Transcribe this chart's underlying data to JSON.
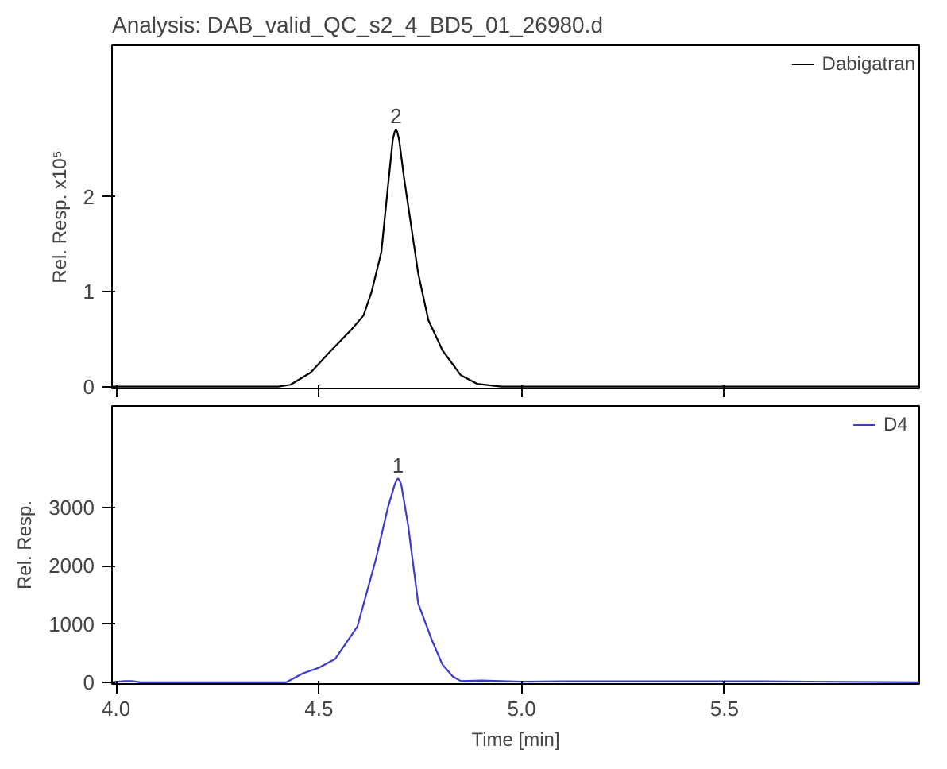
{
  "chart_data": [
    {
      "type": "line",
      "title": "Analysis:     DAB_valid_QC_s2_4_BD5_01_26980.d",
      "ylabel": "Rel. Resp. x10⁵",
      "xlim": [
        3.99,
        5.98
      ],
      "ylim": [
        -0.02,
        3.6
      ],
      "yticks": [
        0,
        1,
        2
      ],
      "tick_labels": "y",
      "grid": false,
      "legend": "top right",
      "series": [
        {
          "name": "Dabigatran",
          "color": "#000000",
          "x": [
            3.99,
            4.2,
            4.4,
            4.43,
            4.48,
            4.53,
            4.58,
            4.61,
            4.63,
            4.654,
            4.67,
            4.682,
            4.687,
            4.69,
            4.693,
            4.698,
            4.71,
            4.745,
            4.77,
            4.805,
            4.85,
            4.89,
            4.95,
            5.2,
            5.98
          ],
          "values": [
            0,
            0,
            0,
            0.02,
            0.15,
            0.38,
            0.6,
            0.75,
            1.0,
            1.42,
            2.1,
            2.6,
            2.69,
            2.71,
            2.69,
            2.6,
            2.2,
            1.19,
            0.7,
            0.38,
            0.12,
            0.03,
            0,
            0,
            0
          ]
        }
      ],
      "annotations": [
        {
          "text": "2",
          "x": 4.69,
          "y": 2.71
        }
      ]
    },
    {
      "type": "line",
      "ylabel": "Rel. Resp.",
      "xlabel": "Time [min]",
      "xlim": [
        3.99,
        5.98
      ],
      "xticks": [
        {
          "value": 4,
          "label": "4.0"
        },
        4.5,
        {
          "value": 5,
          "label": "5.0"
        },
        5.5
      ],
      "ylim": [
        -30,
        4750
      ],
      "yticks": [
        0,
        1000,
        2000,
        3000
      ],
      "grid": false,
      "legend": "top right",
      "series": [
        {
          "name": "D4",
          "color": "#3a3ad0",
          "x": [
            3.99,
            4.02,
            4.04,
            4.06,
            4.3,
            4.42,
            4.46,
            4.5,
            4.54,
            4.595,
            4.64,
            4.67,
            4.687,
            4.692,
            4.695,
            4.698,
            4.703,
            4.72,
            4.745,
            4.78,
            4.805,
            4.83,
            4.85,
            4.9,
            5.0,
            5.1,
            5.3,
            5.6,
            5.98
          ],
          "values": [
            0,
            20,
            20,
            0,
            0,
            0,
            150,
            250,
            400,
            960,
            2100,
            3000,
            3400,
            3480,
            3500,
            3480,
            3400,
            2700,
            1350,
            700,
            300,
            100,
            20,
            30,
            10,
            15,
            15,
            15,
            0
          ]
        }
      ],
      "annotations": [
        {
          "text": "1",
          "x": 4.695,
          "y": 3500
        }
      ]
    }
  ]
}
